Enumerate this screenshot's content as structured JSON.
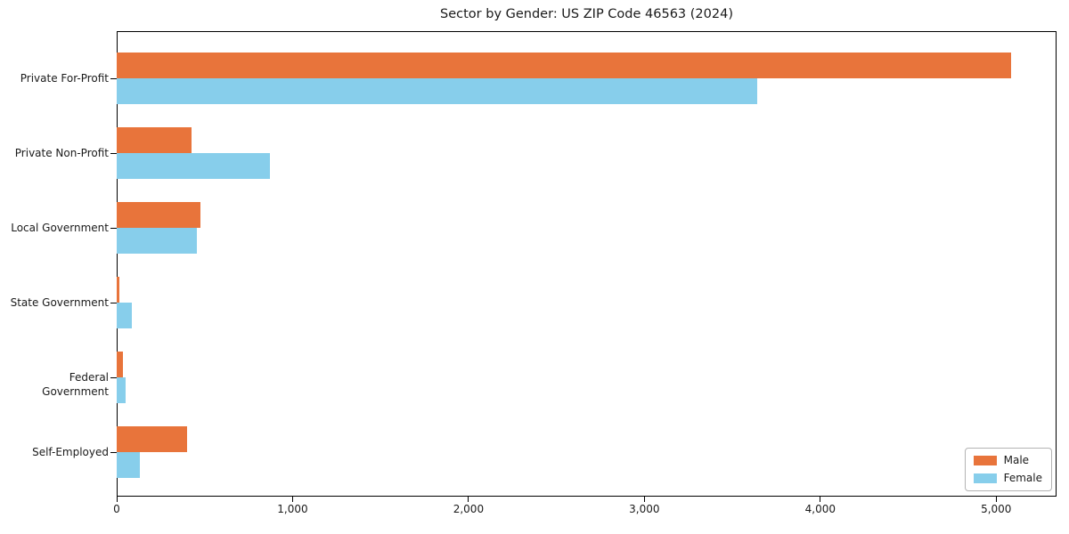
{
  "title": "Sector by Gender: US ZIP Code 46563 (2024)",
  "chart_data": {
    "type": "bar",
    "orientation": "horizontal",
    "title": "Sector by Gender: US ZIP Code 46563 (2024)",
    "categories": [
      "Private For-Profit",
      "Private Non-Profit",
      "Local Government",
      "State Government",
      "Federal Government",
      "Self-Employed"
    ],
    "series": [
      {
        "name": "Male",
        "color": "#e8743b",
        "values": [
          5085,
          425,
          478,
          15,
          35,
          398
        ]
      },
      {
        "name": "Female",
        "color": "#87ceeb",
        "values": [
          3640,
          870,
          458,
          85,
          52,
          133
        ]
      }
    ],
    "xlabel": "",
    "ylabel": "",
    "xlim": [
      0,
      5343
    ],
    "x_ticks": [
      0,
      1000,
      2000,
      3000,
      4000,
      5000
    ],
    "x_tick_labels": [
      "0",
      "1,000",
      "2,000",
      "3,000",
      "4,000",
      "5,000"
    ],
    "grid": false,
    "legend_position": "lower right",
    "background_color": "#ffffff",
    "axis_color": "#000000"
  }
}
